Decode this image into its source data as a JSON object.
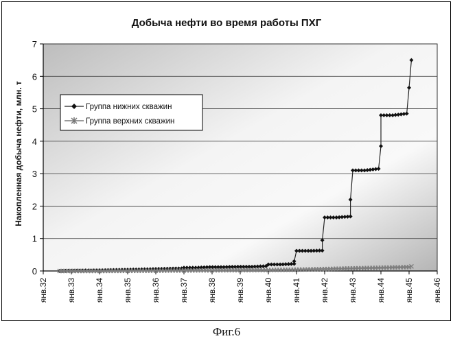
{
  "caption": "Фиг.6",
  "chart_data": {
    "type": "line",
    "title": "Добыча нефти во время работы ПХГ",
    "ylabel": "Накопленная добыча нефти, млн. т",
    "xlabel": "",
    "ylim": [
      0,
      7
    ],
    "yticks": [
      "0",
      "1",
      "2",
      "3",
      "4",
      "5",
      "6",
      "7"
    ],
    "xlim": [
      "янв.32",
      "янв.46"
    ],
    "xticks": [
      "янв.32",
      "янв.33",
      "янв.34",
      "янв.35",
      "янв.36",
      "янв.37",
      "янв.38",
      "янв.39",
      "янв.40",
      "янв.41",
      "янв.42",
      "янв.43",
      "янв.44",
      "янв.45",
      "янв.46"
    ],
    "grid": "horizontal",
    "legend_position": "left-middle",
    "background": "gradient-grey",
    "series": [
      {
        "name": "Группа нижних скважин",
        "marker": "diamond",
        "color": "#222222",
        "points": [
          [
            "1932-08",
            0.0
          ],
          [
            "1933-01",
            0.01
          ],
          [
            "1934-01",
            0.02
          ],
          [
            "1935-01",
            0.04
          ],
          [
            "1936-01",
            0.06
          ],
          [
            "1936-12",
            0.08
          ],
          [
            "1937-01",
            0.1
          ],
          [
            "1937-06",
            0.1
          ],
          [
            "1937-12",
            0.12
          ],
          [
            "1938-06",
            0.12
          ],
          [
            "1938-12",
            0.13
          ],
          [
            "1939-06",
            0.13
          ],
          [
            "1939-12",
            0.15
          ],
          [
            "1940-01",
            0.2
          ],
          [
            "1940-06",
            0.2
          ],
          [
            "1940-12",
            0.22
          ],
          [
            "1940-12",
            0.3
          ],
          [
            "1941-01",
            0.62
          ],
          [
            "1941-06",
            0.62
          ],
          [
            "1941-12",
            0.63
          ],
          [
            "1941-12",
            0.95
          ],
          [
            "1942-01",
            1.65
          ],
          [
            "1942-06",
            1.65
          ],
          [
            "1942-12",
            1.68
          ],
          [
            "1942-12",
            2.2
          ],
          [
            "1943-01",
            3.1
          ],
          [
            "1943-06",
            3.1
          ],
          [
            "1943-12",
            3.15
          ],
          [
            "1944-01",
            3.85
          ],
          [
            "1944-01",
            4.8
          ],
          [
            "1944-06",
            4.8
          ],
          [
            "1944-12",
            4.85
          ],
          [
            "1945-01",
            5.65
          ],
          [
            "1945-02",
            6.5
          ]
        ]
      },
      {
        "name": "Группа верхних скважин",
        "marker": "star",
        "color": "#7a7a7a",
        "points": [
          [
            "1932-08",
            0.0
          ],
          [
            "1934-01",
            0.0
          ],
          [
            "1936-01",
            0.01
          ],
          [
            "1938-01",
            0.02
          ],
          [
            "1940-01",
            0.03
          ],
          [
            "1941-01",
            0.04
          ],
          [
            "1942-01",
            0.06
          ],
          [
            "1943-01",
            0.08
          ],
          [
            "1944-01",
            0.1
          ],
          [
            "1945-01",
            0.12
          ],
          [
            "1945-02",
            0.14
          ]
        ]
      }
    ]
  }
}
